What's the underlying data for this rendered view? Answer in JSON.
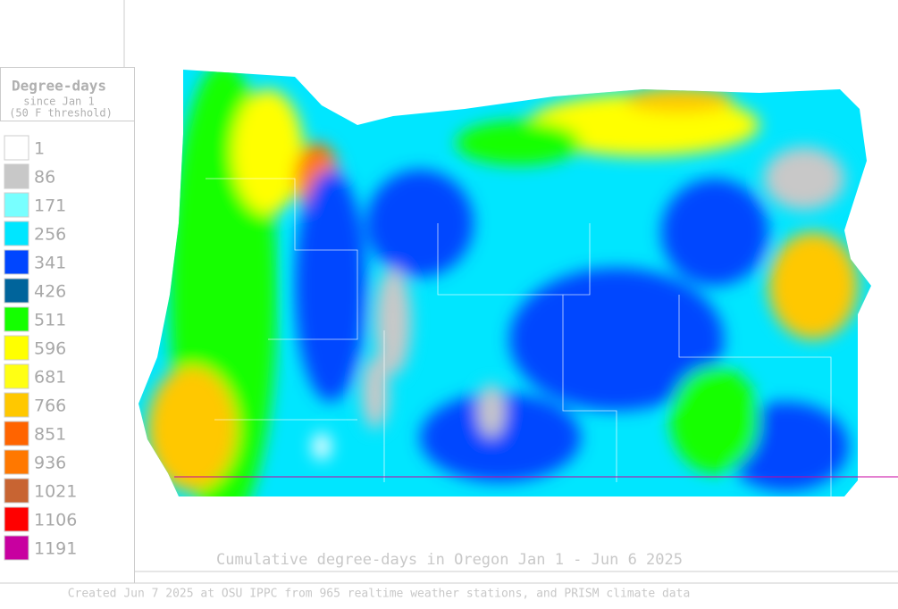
{
  "legend": {
    "title": "Degree-days",
    "subtitle": "since Jan 1",
    "note": "(50 F threshold)",
    "items": [
      {
        "label": 1,
        "color": "#ffffff"
      },
      {
        "label": 86,
        "color": "#c8c8c8"
      },
      {
        "label": 171,
        "color": "#78ffff"
      },
      {
        "label": 256,
        "color": "#00e6ff"
      },
      {
        "label": 341,
        "color": "#0046ff"
      },
      {
        "label": 426,
        "color": "#00649b"
      },
      {
        "label": 511,
        "color": "#14ff00"
      },
      {
        "label": 596,
        "color": "#ffff00"
      },
      {
        "label": 681,
        "color": "#ffff14"
      },
      {
        "label": 766,
        "color": "#ffc800"
      },
      {
        "label": 851,
        "color": "#ff6400"
      },
      {
        "label": 936,
        "color": "#ff7800"
      },
      {
        "label": 1021,
        "color": "#c86432"
      },
      {
        "label": 1106,
        "color": "#ff0000"
      },
      {
        "label": 1191,
        "color": "#c800a0"
      }
    ]
  },
  "caption": "Cumulative degree-days in Oregon  Jan 1 - Jun 6 2025",
  "footer": "Created Jun 7 2025 at OSU IPPC from 965 realtime weather stations, and PRISM climate data"
}
